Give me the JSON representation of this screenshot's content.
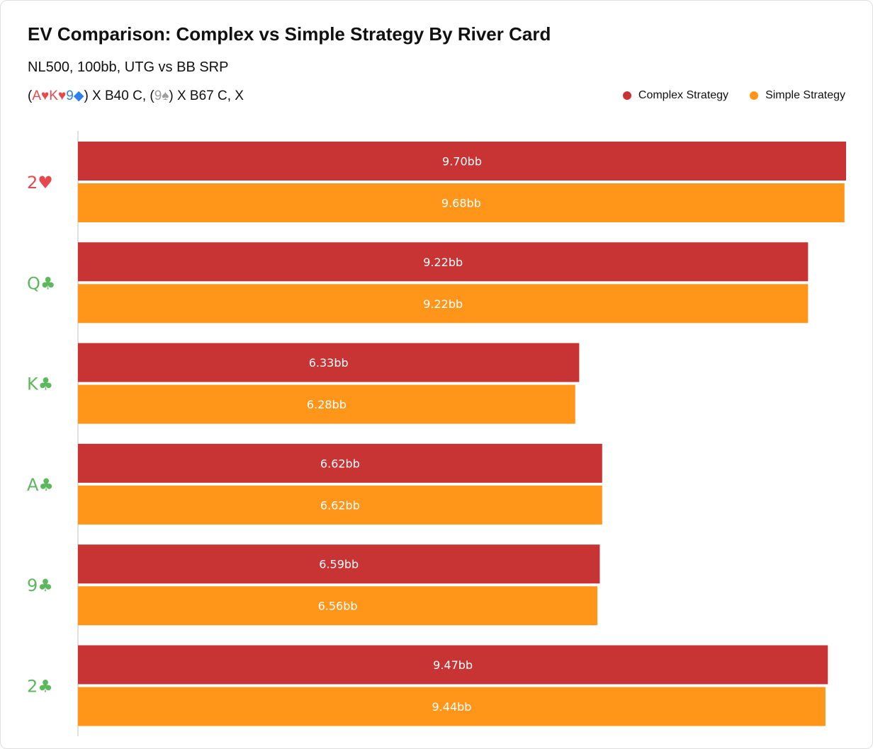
{
  "header": {
    "title": "EV Comparison: Complex vs Simple Strategy By River Card",
    "subtitle": "NL500, 100bb, UTG vs BB SRP",
    "action_line": {
      "open_paren": "(",
      "board": [
        {
          "text": "A♥",
          "color": "#e5484d"
        },
        {
          "text": "K♥",
          "color": "#e5484d"
        },
        {
          "text": "9◆",
          "color": "#2f80ed"
        }
      ],
      "mid": ") X B40 C, (",
      "turn": {
        "text": "9♠",
        "color": "#9e9e9e"
      },
      "tail": ") X B67 C, X"
    }
  },
  "legend": {
    "complex_label": "Complex Strategy",
    "simple_label": "Simple Strategy"
  },
  "colors": {
    "complex": "#c83434",
    "simple": "#ff961a",
    "axis": "#e0e0e0"
  },
  "chart_data": {
    "type": "bar",
    "orientation": "horizontal",
    "title": "EV Comparison: Complex vs Simple Strategy By River Card",
    "subtitle": "NL500, 100bb, UTG vs BB SRP",
    "categories": [
      "2♥",
      "Q♣",
      "K♣",
      "A♣",
      "9♣",
      "2♣"
    ],
    "category_colors": [
      "#e5484d",
      "#5cb85c",
      "#5cb85c",
      "#5cb85c",
      "#5cb85c",
      "#5cb85c"
    ],
    "series": [
      {
        "name": "Complex Strategy",
        "values": [
          9.7,
          9.22,
          6.33,
          6.62,
          6.59,
          9.47
        ],
        "labels": [
          "9.70bb",
          "9.22bb",
          "6.33bb",
          "6.62bb",
          "6.59bb",
          "9.47bb"
        ]
      },
      {
        "name": "Simple Strategy",
        "values": [
          9.68,
          9.22,
          6.28,
          6.62,
          6.56,
          9.44
        ],
        "labels": [
          "9.68bb",
          "9.22bb",
          "6.28bb",
          "6.62bb",
          "6.56bb",
          "9.44bb"
        ]
      }
    ],
    "xlim": [
      0,
      9.7
    ],
    "grid": false,
    "legend_position": "top-right"
  }
}
